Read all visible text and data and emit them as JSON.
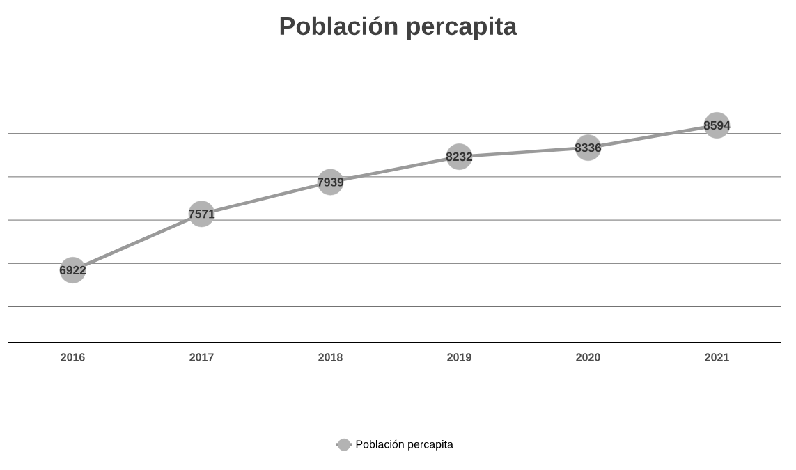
{
  "chart_data": {
    "type": "line",
    "title": "Población percapita",
    "categories": [
      "2016",
      "2017",
      "2018",
      "2019",
      "2020",
      "2021"
    ],
    "series": [
      {
        "name": "Población percapita",
        "color": "#9a9a9a",
        "values": [
          6922,
          7571,
          7939,
          8232,
          8336,
          8594
        ]
      }
    ],
    "tick_labels": "x",
    "grid": "y",
    "legend": "bottom",
    "marker": "circle",
    "data_labels": true
  }
}
